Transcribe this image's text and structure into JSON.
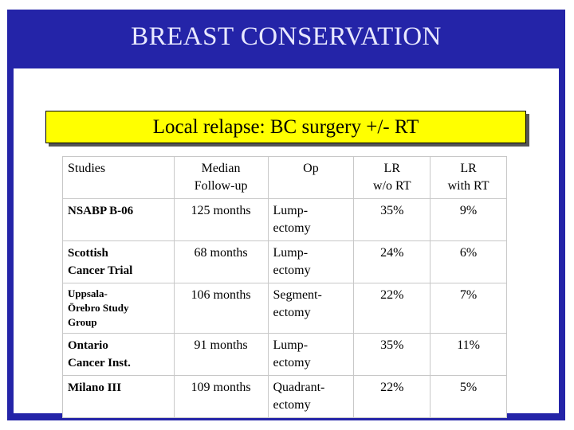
{
  "title": "BREAST CONSERVATION",
  "subtitle": "Local relapse: BC surgery +/- RT",
  "table": {
    "headers": {
      "studies": "Studies",
      "median": [
        "Median",
        "Follow-up"
      ],
      "op": "Op",
      "lr_wo": [
        "LR",
        "w/o RT"
      ],
      "lr_with": [
        "LR",
        "with RT"
      ]
    },
    "rows": [
      {
        "study": [
          "NSABP B-06"
        ],
        "followup": "125 months",
        "op": [
          "Lump-",
          "ectomy"
        ],
        "lr_wo": "35%",
        "lr_with": "9%"
      },
      {
        "study": [
          "Scottish",
          "Cancer Trial"
        ],
        "followup": "68 months",
        "op": [
          "Lump-",
          "ectomy"
        ],
        "lr_wo": "24%",
        "lr_with": "6%"
      },
      {
        "study": [
          "Uppsala-",
          "Örebro Study",
          "Group"
        ],
        "followup": "106 months",
        "op": [
          "Segment-",
          "ectomy"
        ],
        "lr_wo": "22%",
        "lr_with": "7%"
      },
      {
        "study": [
          "Ontario",
          "Cancer Inst."
        ],
        "followup": "91 months",
        "op": [
          "Lump-",
          "ectomy"
        ],
        "lr_wo": "35%",
        "lr_with": "11%"
      },
      {
        "study": [
          "Milano III"
        ],
        "followup": "109 months",
        "op": [
          "Quadrant-",
          "ectomy"
        ],
        "lr_wo": "22%",
        "lr_with": "5%"
      }
    ]
  },
  "colors": {
    "frame": "#2424a8",
    "title_text": "#e8e8ff",
    "subtitle_bg": "#ffff00",
    "with_rt": "#c00000"
  }
}
